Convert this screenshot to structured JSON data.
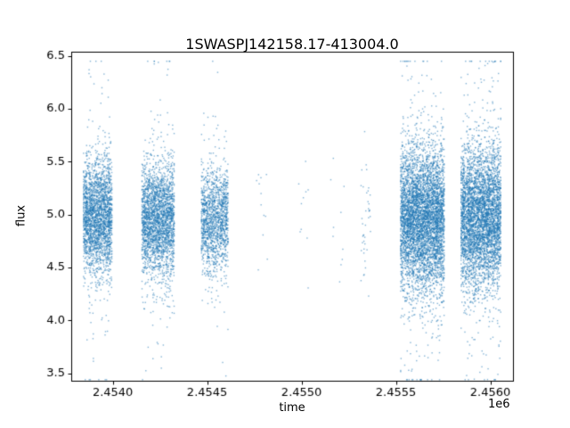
{
  "figure": {
    "title": "1SWASPJ142158.17-413004.0",
    "xlabel": "time",
    "ylabel": "flux",
    "offset_text": "1e6",
    "background": "#ffffff",
    "marker_color": "#1f77b4",
    "marker_alpha": 0.55,
    "marker_size": 1.4
  },
  "chart_data": {
    "type": "scatter",
    "title": "1SWASPJ142158.17-413004.0",
    "xlabel": "time",
    "ylabel": "flux",
    "x_offset_factor": 1000000,
    "xlim": [
      2453780,
      2456120
    ],
    "ylim": [
      3.43,
      6.54
    ],
    "xticks": [
      2454000,
      2454500,
      2455000,
      2455500,
      2456000
    ],
    "xtick_labels": [
      "2.4540",
      "2.4545",
      "2.4550",
      "2.4555",
      "2.4560"
    ],
    "yticks": [
      3.5,
      4.0,
      4.5,
      5.0,
      5.5,
      6.0,
      6.5
    ],
    "ytick_labels": [
      "3.5",
      "4.0",
      "4.5",
      "5.0",
      "5.5",
      "6.0",
      "6.5"
    ],
    "grid": false,
    "legend": null,
    "flux_clip": [
      3.44,
      6.45
    ],
    "clusters": [
      {
        "t_center": 2453920,
        "t_halfwidth": 75,
        "nights": 6,
        "n_points": 2500,
        "flux_mean": 4.98,
        "flux_std": 0.27,
        "outlier_frac": 0.05,
        "outlier_std": 0.8
      },
      {
        "t_center": 2454240,
        "t_halfwidth": 85,
        "nights": 7,
        "n_points": 2600,
        "flux_mean": 4.95,
        "flux_std": 0.27,
        "outlier_frac": 0.05,
        "outlier_std": 0.8
      },
      {
        "t_center": 2454540,
        "t_halfwidth": 70,
        "nights": 6,
        "n_points": 1500,
        "flux_mean": 4.95,
        "flux_std": 0.25,
        "outlier_frac": 0.04,
        "outlier_std": 0.65
      },
      {
        "t_center": 2454790,
        "t_halfwidth": 40,
        "nights": 2,
        "n_points": 12,
        "flux_mean": 4.95,
        "flux_std": 0.25,
        "outlier_frac": 0.1,
        "outlier_std": 0.5
      },
      {
        "t_center": 2455000,
        "t_halfwidth": 35,
        "nights": 2,
        "n_points": 10,
        "flux_mean": 5.0,
        "flux_std": 0.3,
        "outlier_frac": 0.1,
        "outlier_std": 0.5
      },
      {
        "t_center": 2455190,
        "t_halfwidth": 35,
        "nights": 2,
        "n_points": 10,
        "flux_mean": 5.0,
        "flux_std": 0.3,
        "outlier_frac": 0.1,
        "outlier_std": 0.5
      },
      {
        "t_center": 2455340,
        "t_halfwidth": 25,
        "nights": 2,
        "n_points": 40,
        "flux_mean": 4.9,
        "flux_std": 0.35,
        "outlier_frac": 0.1,
        "outlier_std": 0.6
      },
      {
        "t_center": 2455640,
        "t_halfwidth": 115,
        "nights": 9,
        "n_points": 5200,
        "flux_mean": 4.95,
        "flux_std": 0.33,
        "outlier_frac": 0.07,
        "outlier_std": 0.85
      },
      {
        "t_center": 2455950,
        "t_halfwidth": 105,
        "nights": 8,
        "n_points": 4500,
        "flux_mean": 4.97,
        "flux_std": 0.33,
        "outlier_frac": 0.07,
        "outlier_std": 0.85
      }
    ]
  }
}
